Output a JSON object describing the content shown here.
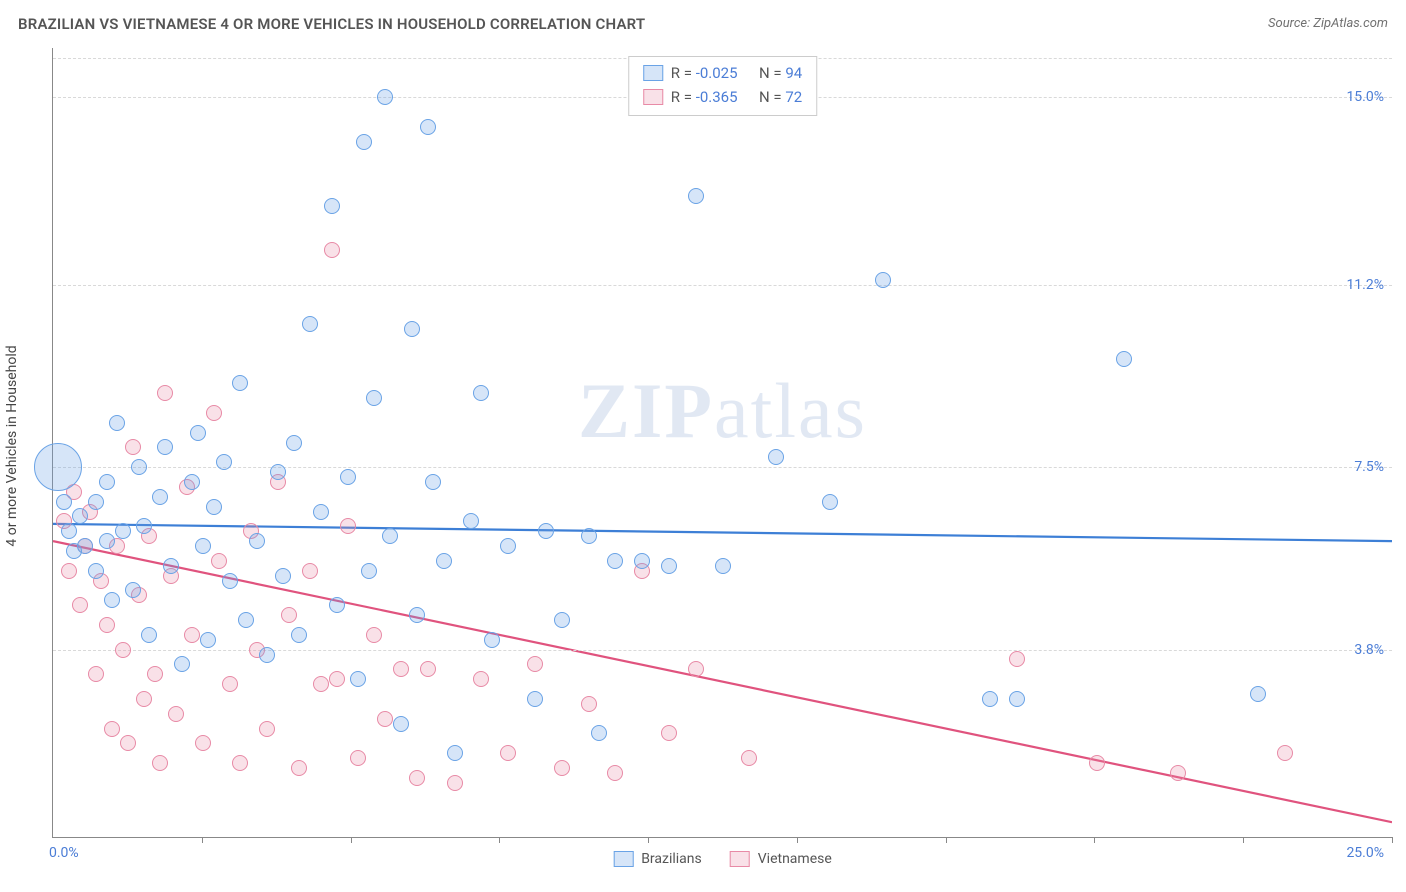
{
  "title": "BRAZILIAN VS VIETNAMESE 4 OR MORE VEHICLES IN HOUSEHOLD CORRELATION CHART",
  "source_label": "Source: ZipAtlas.com",
  "watermark_zip": "ZIP",
  "watermark_atlas": "atlas",
  "ylabel": "4 or more Vehicles in Household",
  "axes": {
    "xlim": [
      0.0,
      25.0
    ],
    "ylim": [
      0.0,
      16.0
    ],
    "y_ticks": [
      {
        "v": 3.8,
        "label": "3.8%"
      },
      {
        "v": 7.5,
        "label": "7.5%"
      },
      {
        "v": 11.2,
        "label": "11.2%"
      },
      {
        "v": 15.0,
        "label": "15.0%"
      }
    ],
    "x_ticks": [
      2.78,
      5.56,
      8.33,
      11.11,
      13.89,
      16.67,
      19.44,
      22.22,
      25.0
    ],
    "x0_label": "0.0%",
    "xmax_label": "25.0%",
    "grid_color": "#d9d9d9",
    "axis_color": "#888888",
    "tick_label_color": "#4b7dd6"
  },
  "series": {
    "brazilians": {
      "label": "Brazilians",
      "R": "-0.025",
      "N": "94",
      "color_stroke": "#6aa3e6",
      "color_fill": "rgba(106,163,230,0.28)",
      "trend_color": "#3d7fd6",
      "trend_y_at_x0": 6.35,
      "trend_y_at_xmax": 6.0,
      "points": [
        {
          "x": 0.1,
          "y": 7.5,
          "r": 24
        },
        {
          "x": 0.2,
          "y": 6.8,
          "r": 8
        },
        {
          "x": 0.3,
          "y": 6.2,
          "r": 8
        },
        {
          "x": 0.4,
          "y": 5.8,
          "r": 8
        },
        {
          "x": 0.5,
          "y": 6.5,
          "r": 8
        },
        {
          "x": 0.6,
          "y": 5.9,
          "r": 8
        },
        {
          "x": 0.8,
          "y": 6.8,
          "r": 8
        },
        {
          "x": 0.8,
          "y": 5.4,
          "r": 8
        },
        {
          "x": 1.0,
          "y": 7.2,
          "r": 8
        },
        {
          "x": 1.0,
          "y": 6.0,
          "r": 8
        },
        {
          "x": 1.1,
          "y": 4.8,
          "r": 8
        },
        {
          "x": 1.2,
          "y": 8.4,
          "r": 8
        },
        {
          "x": 1.3,
          "y": 6.2,
          "r": 8
        },
        {
          "x": 1.5,
          "y": 5.0,
          "r": 8
        },
        {
          "x": 1.6,
          "y": 7.5,
          "r": 8
        },
        {
          "x": 1.7,
          "y": 6.3,
          "r": 8
        },
        {
          "x": 1.8,
          "y": 4.1,
          "r": 8
        },
        {
          "x": 2.0,
          "y": 6.9,
          "r": 8
        },
        {
          "x": 2.1,
          "y": 7.9,
          "r": 8
        },
        {
          "x": 2.2,
          "y": 5.5,
          "r": 8
        },
        {
          "x": 2.4,
          "y": 3.5,
          "r": 8
        },
        {
          "x": 2.6,
          "y": 7.2,
          "r": 8
        },
        {
          "x": 2.7,
          "y": 8.2,
          "r": 8
        },
        {
          "x": 2.8,
          "y": 5.9,
          "r": 8
        },
        {
          "x": 2.9,
          "y": 4.0,
          "r": 8
        },
        {
          "x": 3.0,
          "y": 6.7,
          "r": 8
        },
        {
          "x": 3.2,
          "y": 7.6,
          "r": 8
        },
        {
          "x": 3.3,
          "y": 5.2,
          "r": 8
        },
        {
          "x": 3.5,
          "y": 9.2,
          "r": 8
        },
        {
          "x": 3.6,
          "y": 4.4,
          "r": 8
        },
        {
          "x": 3.8,
          "y": 6.0,
          "r": 8
        },
        {
          "x": 4.0,
          "y": 3.7,
          "r": 8
        },
        {
          "x": 4.2,
          "y": 7.4,
          "r": 8
        },
        {
          "x": 4.3,
          "y": 5.3,
          "r": 8
        },
        {
          "x": 4.5,
          "y": 8.0,
          "r": 8
        },
        {
          "x": 4.6,
          "y": 4.1,
          "r": 8
        },
        {
          "x": 4.8,
          "y": 10.4,
          "r": 8
        },
        {
          "x": 5.0,
          "y": 6.6,
          "r": 8
        },
        {
          "x": 5.2,
          "y": 12.8,
          "r": 8
        },
        {
          "x": 5.3,
          "y": 4.7,
          "r": 8
        },
        {
          "x": 5.5,
          "y": 7.3,
          "r": 8
        },
        {
          "x": 5.7,
          "y": 3.2,
          "r": 8
        },
        {
          "x": 5.8,
          "y": 14.1,
          "r": 8
        },
        {
          "x": 5.9,
          "y": 5.4,
          "r": 8
        },
        {
          "x": 6.0,
          "y": 8.9,
          "r": 8
        },
        {
          "x": 6.2,
          "y": 15.0,
          "r": 8
        },
        {
          "x": 6.3,
          "y": 6.1,
          "r": 8
        },
        {
          "x": 6.5,
          "y": 2.3,
          "r": 8
        },
        {
          "x": 6.7,
          "y": 10.3,
          "r": 8
        },
        {
          "x": 6.8,
          "y": 4.5,
          "r": 8
        },
        {
          "x": 7.0,
          "y": 14.4,
          "r": 8
        },
        {
          "x": 7.1,
          "y": 7.2,
          "r": 8
        },
        {
          "x": 7.3,
          "y": 5.6,
          "r": 8
        },
        {
          "x": 7.5,
          "y": 1.7,
          "r": 8
        },
        {
          "x": 7.8,
          "y": 6.4,
          "r": 8
        },
        {
          "x": 8.0,
          "y": 9.0,
          "r": 8
        },
        {
          "x": 8.2,
          "y": 4.0,
          "r": 8
        },
        {
          "x": 8.5,
          "y": 5.9,
          "r": 8
        },
        {
          "x": 9.0,
          "y": 2.8,
          "r": 8
        },
        {
          "x": 9.2,
          "y": 6.2,
          "r": 8
        },
        {
          "x": 9.5,
          "y": 4.4,
          "r": 8
        },
        {
          "x": 10.0,
          "y": 6.1,
          "r": 8
        },
        {
          "x": 10.2,
          "y": 2.1,
          "r": 8
        },
        {
          "x": 10.5,
          "y": 5.6,
          "r": 8
        },
        {
          "x": 11.0,
          "y": 5.6,
          "r": 8
        },
        {
          "x": 11.5,
          "y": 5.5,
          "r": 8
        },
        {
          "x": 12.0,
          "y": 13.0,
          "r": 8
        },
        {
          "x": 12.5,
          "y": 5.5,
          "r": 8
        },
        {
          "x": 13.5,
          "y": 7.7,
          "r": 8
        },
        {
          "x": 14.5,
          "y": 6.8,
          "r": 8
        },
        {
          "x": 15.5,
          "y": 11.3,
          "r": 8
        },
        {
          "x": 17.5,
          "y": 2.8,
          "r": 8
        },
        {
          "x": 18.0,
          "y": 2.8,
          "r": 8
        },
        {
          "x": 20.0,
          "y": 9.7,
          "r": 8
        },
        {
          "x": 22.5,
          "y": 2.9,
          "r": 8
        }
      ]
    },
    "vietnamese": {
      "label": "Vietnamese",
      "R": "-0.365",
      "N": "72",
      "color_stroke": "#e88aa6",
      "color_fill": "rgba(232,138,166,0.26)",
      "trend_color": "#e0537e",
      "trend_y_at_x0": 6.0,
      "trend_y_at_xmax": 0.3,
      "points": [
        {
          "x": 0.2,
          "y": 6.4,
          "r": 8
        },
        {
          "x": 0.3,
          "y": 5.4,
          "r": 8
        },
        {
          "x": 0.4,
          "y": 7.0,
          "r": 8
        },
        {
          "x": 0.5,
          "y": 4.7,
          "r": 8
        },
        {
          "x": 0.6,
          "y": 5.9,
          "r": 8
        },
        {
          "x": 0.7,
          "y": 6.6,
          "r": 8
        },
        {
          "x": 0.8,
          "y": 3.3,
          "r": 8
        },
        {
          "x": 0.9,
          "y": 5.2,
          "r": 8
        },
        {
          "x": 1.0,
          "y": 4.3,
          "r": 8
        },
        {
          "x": 1.1,
          "y": 2.2,
          "r": 8
        },
        {
          "x": 1.2,
          "y": 5.9,
          "r": 8
        },
        {
          "x": 1.3,
          "y": 3.8,
          "r": 8
        },
        {
          "x": 1.4,
          "y": 1.9,
          "r": 8
        },
        {
          "x": 1.5,
          "y": 7.9,
          "r": 8
        },
        {
          "x": 1.6,
          "y": 4.9,
          "r": 8
        },
        {
          "x": 1.7,
          "y": 2.8,
          "r": 8
        },
        {
          "x": 1.8,
          "y": 6.1,
          "r": 8
        },
        {
          "x": 1.9,
          "y": 3.3,
          "r": 8
        },
        {
          "x": 2.0,
          "y": 1.5,
          "r": 8
        },
        {
          "x": 2.1,
          "y": 9.0,
          "r": 8
        },
        {
          "x": 2.2,
          "y": 5.3,
          "r": 8
        },
        {
          "x": 2.3,
          "y": 2.5,
          "r": 8
        },
        {
          "x": 2.5,
          "y": 7.1,
          "r": 8
        },
        {
          "x": 2.6,
          "y": 4.1,
          "r": 8
        },
        {
          "x": 2.8,
          "y": 1.9,
          "r": 8
        },
        {
          "x": 3.0,
          "y": 8.6,
          "r": 8
        },
        {
          "x": 3.1,
          "y": 5.6,
          "r": 8
        },
        {
          "x": 3.3,
          "y": 3.1,
          "r": 8
        },
        {
          "x": 3.5,
          "y": 1.5,
          "r": 8
        },
        {
          "x": 3.7,
          "y": 6.2,
          "r": 8
        },
        {
          "x": 3.8,
          "y": 3.8,
          "r": 8
        },
        {
          "x": 4.0,
          "y": 2.2,
          "r": 8
        },
        {
          "x": 4.2,
          "y": 7.2,
          "r": 8
        },
        {
          "x": 4.4,
          "y": 4.5,
          "r": 8
        },
        {
          "x": 4.6,
          "y": 1.4,
          "r": 8
        },
        {
          "x": 4.8,
          "y": 5.4,
          "r": 8
        },
        {
          "x": 5.0,
          "y": 3.1,
          "r": 8
        },
        {
          "x": 5.2,
          "y": 11.9,
          "r": 8
        },
        {
          "x": 5.3,
          "y": 3.2,
          "r": 8
        },
        {
          "x": 5.5,
          "y": 6.3,
          "r": 8
        },
        {
          "x": 5.7,
          "y": 1.6,
          "r": 8
        },
        {
          "x": 6.0,
          "y": 4.1,
          "r": 8
        },
        {
          "x": 6.2,
          "y": 2.4,
          "r": 8
        },
        {
          "x": 6.5,
          "y": 3.4,
          "r": 8
        },
        {
          "x": 6.8,
          "y": 1.2,
          "r": 8
        },
        {
          "x": 7.0,
          "y": 3.4,
          "r": 8
        },
        {
          "x": 7.5,
          "y": 1.1,
          "r": 8
        },
        {
          "x": 8.0,
          "y": 3.2,
          "r": 8
        },
        {
          "x": 8.5,
          "y": 1.7,
          "r": 8
        },
        {
          "x": 9.0,
          "y": 3.5,
          "r": 8
        },
        {
          "x": 9.5,
          "y": 1.4,
          "r": 8
        },
        {
          "x": 10.0,
          "y": 2.7,
          "r": 8
        },
        {
          "x": 10.5,
          "y": 1.3,
          "r": 8
        },
        {
          "x": 11.0,
          "y": 5.4,
          "r": 8
        },
        {
          "x": 11.5,
          "y": 2.1,
          "r": 8
        },
        {
          "x": 12.0,
          "y": 3.4,
          "r": 8
        },
        {
          "x": 13.0,
          "y": 1.6,
          "r": 8
        },
        {
          "x": 18.0,
          "y": 3.6,
          "r": 8
        },
        {
          "x": 19.5,
          "y": 1.5,
          "r": 8
        },
        {
          "x": 21.0,
          "y": 1.3,
          "r": 8
        },
        {
          "x": 23.0,
          "y": 1.7,
          "r": 8
        }
      ]
    }
  },
  "legend_top": {
    "R_label": "R =",
    "N_label": "N ="
  },
  "legend_bottom": {
    "s1": "Brazilians",
    "s2": "Vietnamese"
  }
}
